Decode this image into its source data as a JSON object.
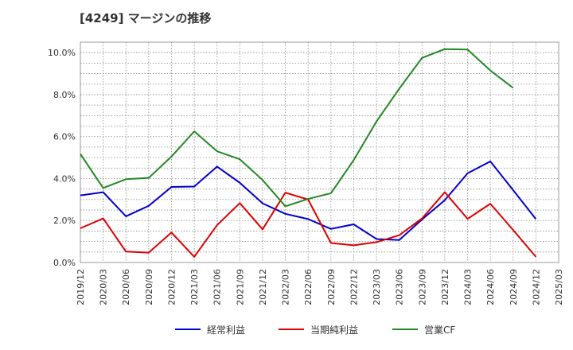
{
  "chart_data": {
    "type": "line",
    "title": "[4249]  マージンの推移",
    "x": [
      "2019/12",
      "2020/03",
      "2020/06",
      "2020/09",
      "2020/12",
      "2021/03",
      "2021/06",
      "2021/09",
      "2021/12",
      "2022/03",
      "2022/06",
      "2022/09",
      "2022/12",
      "2023/03",
      "2023/06",
      "2023/09",
      "2023/12",
      "2024/03",
      "2024/06",
      "2024/09",
      "2024/12",
      "2025/03"
    ],
    "ylim": [
      0,
      10.5
    ],
    "yticks": [
      0,
      2,
      4,
      6,
      8,
      10
    ],
    "ytick_labels": [
      "0.0%",
      "2.0%",
      "4.0%",
      "6.0%",
      "8.0%",
      "10.0%"
    ],
    "grid": true,
    "legend_position": "bottom",
    "series": [
      {
        "name": "経常利益",
        "color": "#0000cc",
        "values": [
          3.2,
          3.35,
          2.2,
          2.7,
          3.6,
          3.62,
          4.57,
          3.8,
          2.82,
          2.32,
          2.07,
          1.6,
          1.82,
          1.12,
          1.07,
          2.05,
          2.97,
          4.25,
          4.82,
          3.45,
          2.07,
          null
        ]
      },
      {
        "name": "当期純利益",
        "color": "#dd0000",
        "values": [
          1.63,
          2.1,
          0.52,
          0.47,
          1.43,
          0.27,
          1.78,
          2.83,
          1.58,
          3.33,
          3.0,
          0.93,
          0.82,
          0.97,
          1.3,
          2.1,
          3.35,
          2.08,
          2.8,
          1.55,
          0.27,
          null
        ]
      },
      {
        "name": "営業CF",
        "color": "#228822",
        "values": [
          5.17,
          3.55,
          3.97,
          4.03,
          5.05,
          6.25,
          5.3,
          4.92,
          3.93,
          2.68,
          3.03,
          3.3,
          4.88,
          6.72,
          8.28,
          9.75,
          10.17,
          10.15,
          9.15,
          8.32,
          null,
          null
        ]
      }
    ]
  }
}
